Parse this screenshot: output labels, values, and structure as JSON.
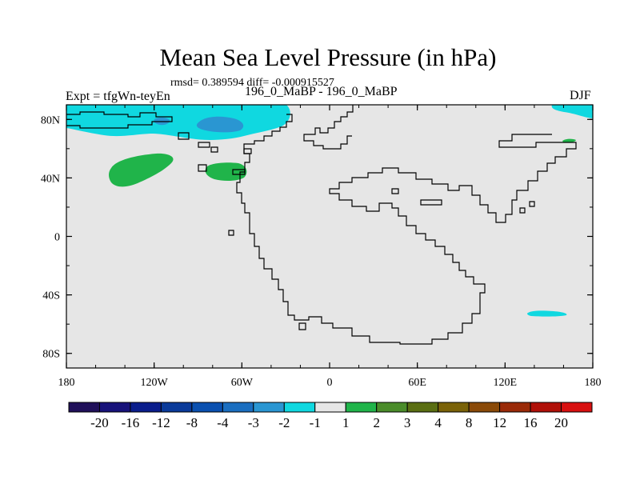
{
  "figure": {
    "title": "Mean Sea Level Pressure (in hPa)",
    "stats": "rmsd= 0.389594 diff= -0.000915527",
    "left_string": "Expt = tfgWn-teyEn",
    "center_string": "196_0_MaBP - 196_0_MaBP",
    "right_string": "DJF"
  },
  "chart_data": {
    "type": "heatmap",
    "title": "Mean Sea Level Pressure (in hPa)",
    "subtitle": "196_0_MaBP - 196_0_MaBP",
    "season": "DJF",
    "projection": "cylindrical equidistant",
    "xlim": [
      -180,
      180
    ],
    "ylim": [
      -90,
      90
    ],
    "x_ticks": [
      {
        "value": -180,
        "label": "180"
      },
      {
        "value": -120,
        "label": "120W"
      },
      {
        "value": -60,
        "label": "60W"
      },
      {
        "value": 0,
        "label": "0"
      },
      {
        "value": 60,
        "label": "60E"
      },
      {
        "value": 120,
        "label": "120E"
      },
      {
        "value": 180,
        "label": "180"
      }
    ],
    "y_ticks": [
      {
        "value": 80,
        "label": "80N"
      },
      {
        "value": 40,
        "label": "40N"
      },
      {
        "value": 0,
        "label": "0"
      },
      {
        "value": -40,
        "label": "40S"
      },
      {
        "value": -80,
        "label": "80S"
      }
    ],
    "colorbar": {
      "levels": [
        "-20",
        "-16",
        "-12",
        "-8",
        "-4",
        "-3",
        "-2",
        "-1",
        "1",
        "2",
        "3",
        "4",
        "8",
        "12",
        "16",
        "20"
      ],
      "colors": [
        "#20105a",
        "#17127a",
        "#0a1d8c",
        "#0a3a9a",
        "#0a50b0",
        "#1a6ec0",
        "#2a96d2",
        "#10d8e0",
        "#e6e6e6",
        "#20b44a",
        "#4a8c2a",
        "#5a6e12",
        "#7a6208",
        "#8a4a08",
        "#9a2a08",
        "#b01008",
        "#d81010"
      ]
    },
    "anomalies": [
      {
        "region": "Arctic north of North Atlantic",
        "lon": [
          -180,
          -40
        ],
        "lat": [
          65,
          85
        ],
        "range": "-2 to -1",
        "core_range": "-3 to -2",
        "core_lon": [
          -135,
          -100
        ],
        "core_lat": [
          72,
          81
        ]
      },
      {
        "region": "Arctic, far east",
        "lon": [
          155,
          180
        ],
        "lat": [
          78,
          84
        ],
        "range": "-2 to -1"
      },
      {
        "region": "Northeast Pacific",
        "lon": [
          -150,
          -115
        ],
        "lat": [
          38,
          56
        ],
        "range": "1 to 2"
      },
      {
        "region": "Western North Atlantic",
        "lon": [
          -85,
          -62
        ],
        "lat": [
          38,
          50
        ],
        "range": "1 to 2"
      },
      {
        "region": "Northwest Pacific coast",
        "lon": [
          161,
          169
        ],
        "lat": [
          64,
          66
        ],
        "range": "1 to 2"
      },
      {
        "region": "Southern Ocean south of Australia",
        "lon": [
          135,
          152
        ],
        "lat": [
          -55,
          -51
        ],
        "range": "-2 to -1"
      }
    ]
  }
}
